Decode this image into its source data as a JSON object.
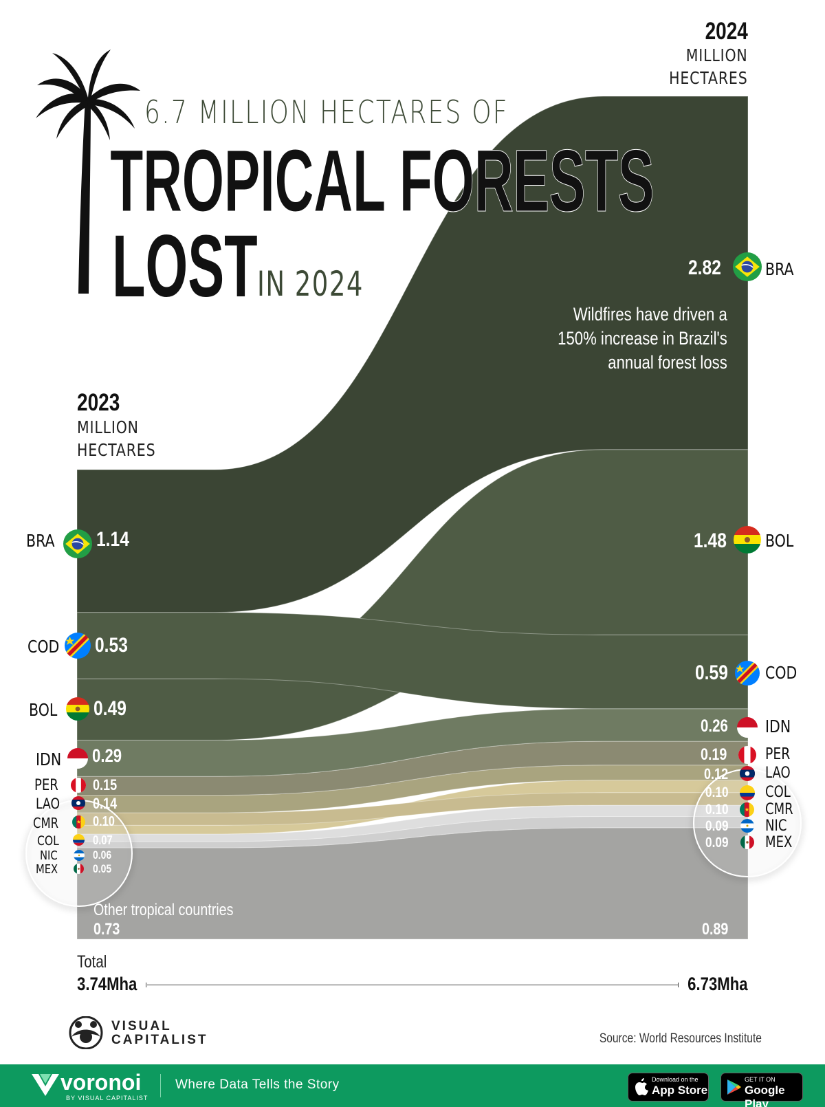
{
  "title": {
    "line1": "6.7 MILLION HECTARES OF",
    "line2": "TROPICAL FORESTS",
    "line3": "LOST",
    "line3_suffix": "IN 2024"
  },
  "annotation": [
    "Wildfires have driven a",
    "150% increase in Brazil's",
    "annual forest loss"
  ],
  "totals": {
    "label": "Total",
    "left": "3.74Mha",
    "right": "6.73Mha"
  },
  "source": "Source: World Resources Institute",
  "brand": {
    "logo_text_1": "VISUAL",
    "logo_text_2": "CAPITALIST"
  },
  "footer": {
    "brand": "voronoi",
    "brand_sub": "BY VISUAL CAPITALIST",
    "tagline": "Where Data Tells the Story",
    "app_store_small": "Download on the",
    "app_store": "App Store",
    "google_play_small": "GET IT ON",
    "google_play": "Google Play"
  },
  "colors": {
    "forest_dark": "#3b4534",
    "forest_mid": "#4f5c45",
    "forest_light": "#6f7b62",
    "tan": "#c8bb90",
    "grey": "#a4a4a2",
    "footer_green": "#0d9a5f"
  },
  "chart_data": {
    "type": "sankey",
    "title": "6.7 MILLION HECTARES OF TROPICAL FORESTS LOST IN 2024",
    "unit": "MILLION HECTARES",
    "left_column": {
      "year": "2023",
      "unit_line1": "MILLION",
      "unit_line2": "HECTARES"
    },
    "right_column": {
      "year": "2024",
      "unit_line1": "MILLION",
      "unit_line2": "HECTARES"
    },
    "order_2023": [
      "BRA",
      "COD",
      "BOL",
      "IDN",
      "PER",
      "LAO",
      "CMR",
      "COL",
      "NIC",
      "MEX",
      "OTH"
    ],
    "order_2024": [
      "BRA",
      "BOL",
      "COD",
      "IDN",
      "PER",
      "LAO",
      "COL",
      "CMR",
      "NIC",
      "MEX",
      "OTH"
    ],
    "series": [
      {
        "code": "BRA",
        "v2023": 1.14,
        "v2023_label": "1.14",
        "v2024": 2.82,
        "v2024_label": "2.82"
      },
      {
        "code": "COD",
        "v2023": 0.53,
        "v2023_label": "0.53",
        "v2024": 0.59,
        "v2024_label": "0.59"
      },
      {
        "code": "BOL",
        "v2023": 0.49,
        "v2023_label": "0.49",
        "v2024": 1.48,
        "v2024_label": "1.48"
      },
      {
        "code": "IDN",
        "v2023": 0.29,
        "v2023_label": "0.29",
        "v2024": 0.26,
        "v2024_label": "0.26"
      },
      {
        "code": "PER",
        "v2023": 0.15,
        "v2023_label": "0.15",
        "v2024": 0.19,
        "v2024_label": "0.19"
      },
      {
        "code": "LAO",
        "v2023": 0.14,
        "v2023_label": "0.14",
        "v2024": 0.12,
        "v2024_label": "0.12"
      },
      {
        "code": "CMR",
        "v2023": 0.1,
        "v2023_label": "0.10",
        "v2024": 0.1,
        "v2024_label": "0.10"
      },
      {
        "code": "COL",
        "v2023": 0.07,
        "v2023_label": "0.07",
        "v2024": 0.1,
        "v2024_label": "0.10"
      },
      {
        "code": "NIC",
        "v2023": 0.06,
        "v2023_label": "0.06",
        "v2024": 0.09,
        "v2024_label": "0.09"
      },
      {
        "code": "MEX",
        "v2023": 0.05,
        "v2023_label": "0.05",
        "v2024": 0.09,
        "v2024_label": "0.09"
      },
      {
        "code": "OTH",
        "name": "Other tropical countries",
        "v2023": 0.73,
        "v2023_label": "0.73",
        "v2024": 0.89,
        "v2024_label": "0.89"
      }
    ],
    "total_2023": "3.74Mha",
    "total_2024": "6.73Mha"
  }
}
